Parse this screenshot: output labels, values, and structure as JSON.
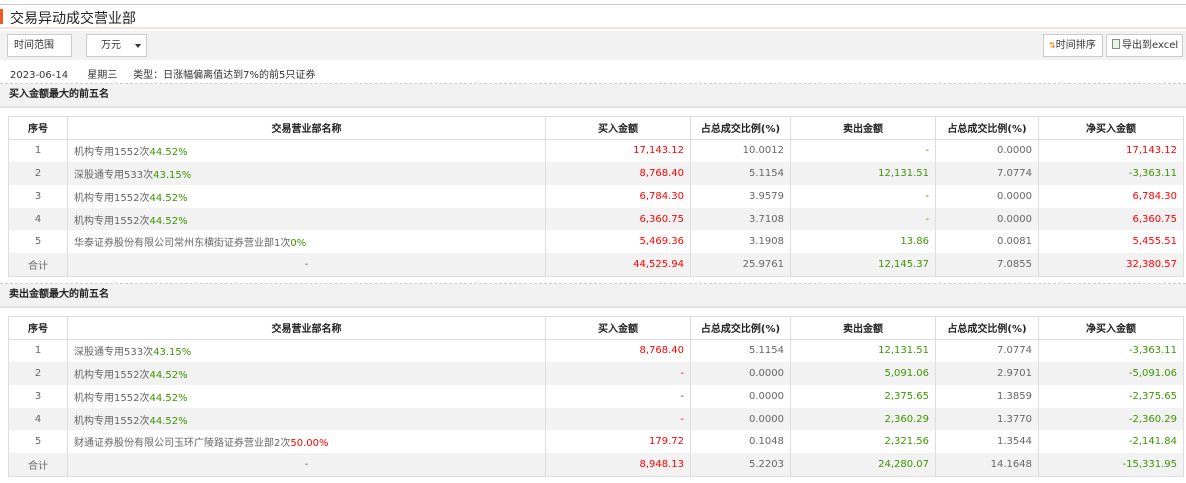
{
  "title": "交易异动成交营业部",
  "toolbar": {
    "time_range": "时间范围",
    "unit": "万元",
    "sort_label": "时间排序",
    "export_label": "导出到excel",
    "sort_icon": "sort-arrows-icon",
    "export_icon": "excel-icon"
  },
  "info": {
    "date": "2023-06-14",
    "weekday": "星期三",
    "type": "类型：日涨幅偏离值达到7%的前5只证券"
  },
  "colors": {
    "accent": "#f05a1a",
    "up": "#ff0000",
    "down": "#3c9600"
  },
  "columns": [
    "序号",
    "交易营业部名称",
    "买入金额",
    "占总成交比例(%)",
    "卖出金额",
    "占总成交比例(%)",
    "净买入金额"
  ],
  "buy_section": {
    "title": "买入金额最大的前五名",
    "rows": [
      {
        "no": "1",
        "name": "机构专用",
        "times": "1552次",
        "pct": "44.52%",
        "pct_color": "green",
        "buy": "17,143.12",
        "buy_ratio": "10.0012",
        "sell": "-",
        "sell_ratio": "0.0000",
        "net": "17,143.12"
      },
      {
        "no": "2",
        "name": "深股通专用",
        "times": "533次",
        "pct": "43.15%",
        "pct_color": "green",
        "buy": "8,768.40",
        "buy_ratio": "5.1154",
        "sell": "12,131.51",
        "sell_ratio": "7.0774",
        "net": "-3,363.11"
      },
      {
        "no": "3",
        "name": "机构专用",
        "times": "1552次",
        "pct": "44.52%",
        "pct_color": "green",
        "buy": "6,784.30",
        "buy_ratio": "3.9579",
        "sell": "-",
        "sell_ratio": "0.0000",
        "net": "6,784.30"
      },
      {
        "no": "4",
        "name": "机构专用",
        "times": "1552次",
        "pct": "44.52%",
        "pct_color": "green",
        "buy": "6,360.75",
        "buy_ratio": "3.7108",
        "sell": "-",
        "sell_ratio": "0.0000",
        "net": "6,360.75"
      },
      {
        "no": "5",
        "name": "华泰证券股份有限公司常州东横街证券营业部",
        "times": "1次",
        "pct": "0%",
        "pct_color": "green",
        "buy": "5,469.36",
        "buy_ratio": "3.1908",
        "sell": "13.86",
        "sell_ratio": "0.0081",
        "net": "5,455.51"
      }
    ],
    "total": {
      "label": "合计",
      "name": "-",
      "buy": "44,525.94",
      "buy_ratio": "25.9761",
      "sell": "12,145.37",
      "sell_ratio": "7.0855",
      "net": "32,380.57"
    }
  },
  "sell_section": {
    "title": "卖出金额最大的前五名",
    "rows": [
      {
        "no": "1",
        "name": "深股通专用",
        "times": "533次",
        "pct": "43.15%",
        "pct_color": "green",
        "buy": "8,768.40",
        "buy_ratio": "5.1154",
        "sell": "12,131.51",
        "sell_ratio": "7.0774",
        "net": "-3,363.11"
      },
      {
        "no": "2",
        "name": "机构专用",
        "times": "1552次",
        "pct": "44.52%",
        "pct_color": "green",
        "buy": "-",
        "buy_ratio": "0.0000",
        "sell": "5,091.06",
        "sell_ratio": "2.9701",
        "net": "-5,091.06"
      },
      {
        "no": "3",
        "name": "机构专用",
        "times": "1552次",
        "pct": "44.52%",
        "pct_color": "green",
        "buy": "-",
        "buy_ratio": "0.0000",
        "sell": "2,375.65",
        "sell_ratio": "1.3859",
        "net": "-2,375.65"
      },
      {
        "no": "4",
        "name": "机构专用",
        "times": "1552次",
        "pct": "44.52%",
        "pct_color": "green",
        "buy": "-",
        "buy_ratio": "0.0000",
        "sell": "2,360.29",
        "sell_ratio": "1.3770",
        "net": "-2,360.29"
      },
      {
        "no": "5",
        "name": "财通证券股份有限公司玉环广陵路证券营业部",
        "times": "2次",
        "pct": "50.00%",
        "pct_color": "red",
        "buy": "179.72",
        "buy_ratio": "0.1048",
        "sell": "2,321.56",
        "sell_ratio": "1.3544",
        "net": "-2,141.84"
      }
    ],
    "total": {
      "label": "合计",
      "name": "-",
      "buy": "8,948.13",
      "buy_ratio": "5.2203",
      "sell": "24,280.07",
      "sell_ratio": "14.1648",
      "net": "-15,331.95"
    }
  }
}
